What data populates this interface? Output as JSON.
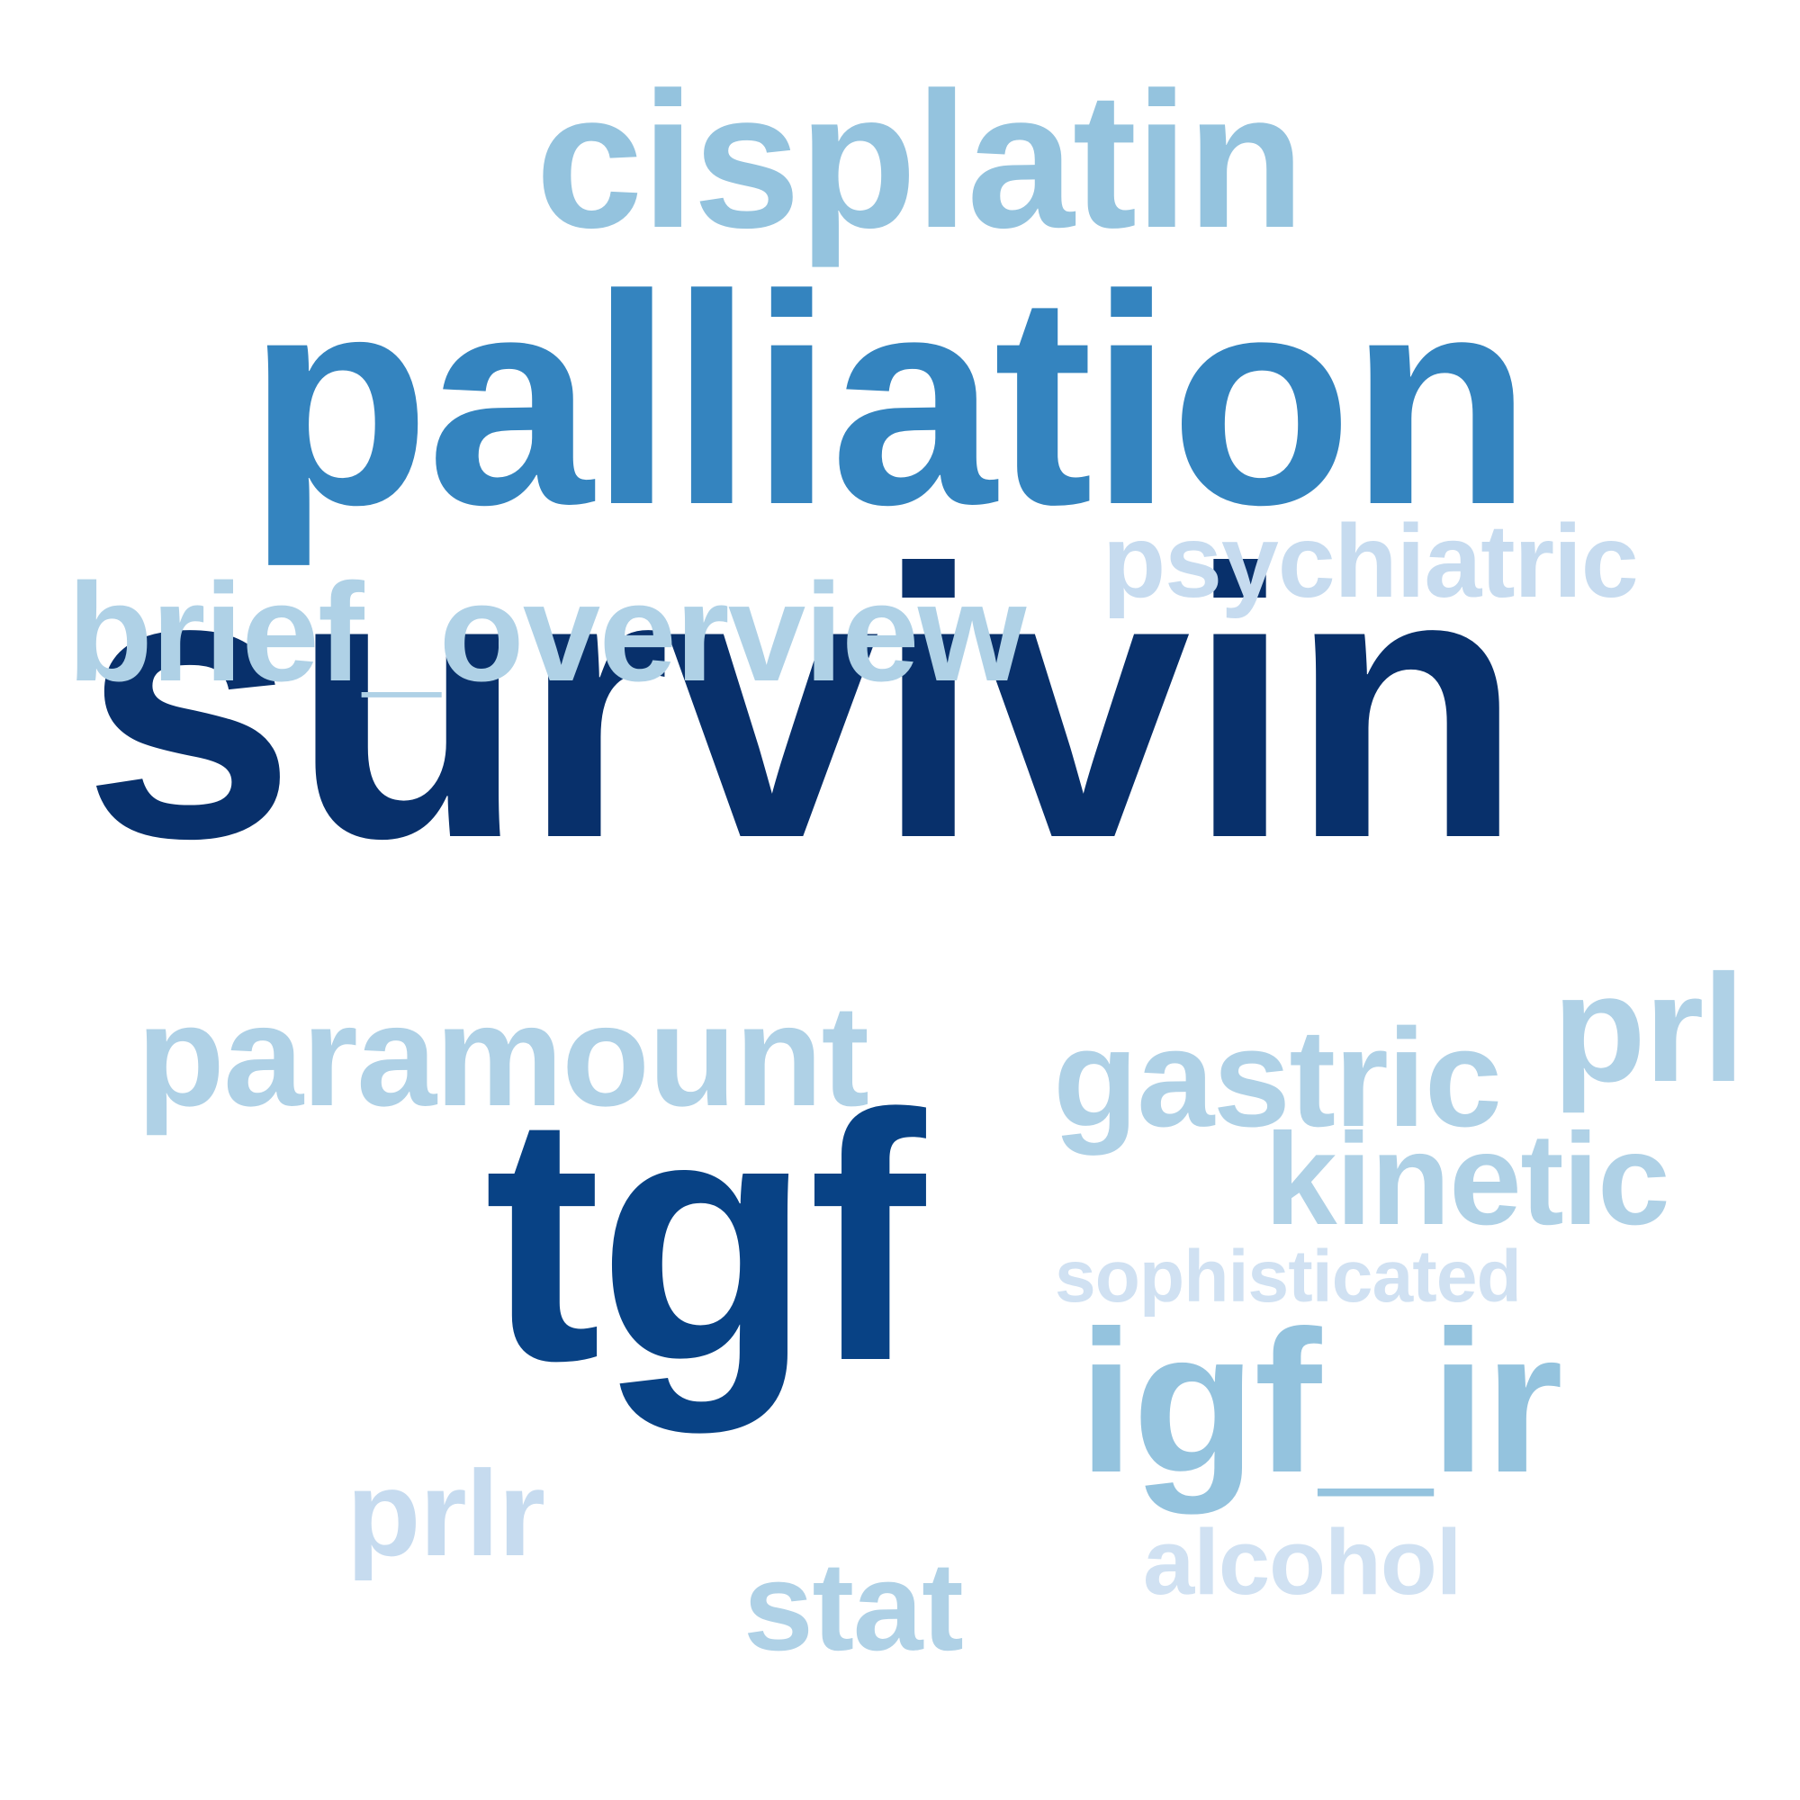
{
  "words": [
    {
      "text": "survivin",
      "color": "#08306b"
    },
    {
      "text": "tgf",
      "color": "#084285"
    },
    {
      "text": "palliation",
      "color": "#3484bf"
    },
    {
      "text": "cisplatin",
      "color": "#94c3de"
    },
    {
      "text": "igf_ir",
      "color": "#94c3de"
    },
    {
      "text": "brief_overview",
      "color": "#afd1e6"
    },
    {
      "text": "paramount",
      "color": "#afd1e6"
    },
    {
      "text": "gastric",
      "color": "#afd1e6"
    },
    {
      "text": "prl",
      "color": "#afd1e6"
    },
    {
      "text": "kinetic",
      "color": "#afd1e6"
    },
    {
      "text": "stat",
      "color": "#afd1e6"
    },
    {
      "text": "psychiatric",
      "color": "#c6dbef"
    },
    {
      "text": "prlr",
      "color": "#c6dbef"
    },
    {
      "text": "sophisticated",
      "color": "#d0e1f2"
    },
    {
      "text": "alcohol",
      "color": "#d0e1f2"
    }
  ]
}
